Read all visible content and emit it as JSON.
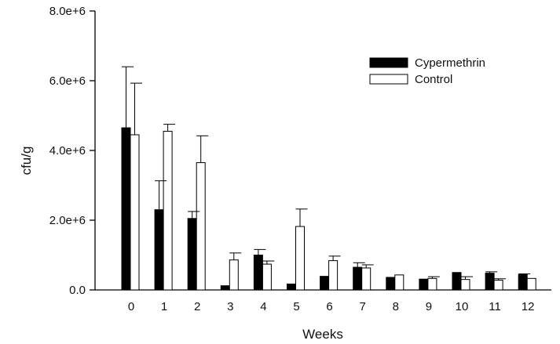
{
  "chart_data": {
    "type": "bar",
    "xlabel": "Weeks",
    "ylabel": "cfu/g",
    "ylim": [
      0,
      8000000
    ],
    "y_ticks": [
      {
        "value": 0,
        "label": "0.0"
      },
      {
        "value": 2000000,
        "label": "2.0e+6"
      },
      {
        "value": 4000000,
        "label": "4.0e+6"
      },
      {
        "value": 6000000,
        "label": "6.0e+6"
      },
      {
        "value": 8000000,
        "label": "8.0e+6"
      }
    ],
    "categories": [
      "0",
      "1",
      "2",
      "3",
      "4",
      "5",
      "6",
      "7",
      "8",
      "9",
      "10",
      "11",
      "12"
    ],
    "series": [
      {
        "name": "Cypermethrin",
        "fill": "#000000",
        "values": [
          4650000,
          2300000,
          2050000,
          120000,
          1000000,
          170000,
          390000,
          650000,
          360000,
          310000,
          500000,
          480000,
          440000
        ],
        "errors": [
          1750000,
          830000,
          200000,
          0,
          160000,
          0,
          0,
          130000,
          0,
          0,
          0,
          40000,
          20000
        ]
      },
      {
        "name": "Control",
        "fill": "#ffffff",
        "values": [
          4450000,
          4550000,
          3650000,
          860000,
          740000,
          1820000,
          840000,
          630000,
          430000,
          330000,
          300000,
          280000,
          330000
        ],
        "errors": [
          1480000,
          200000,
          770000,
          200000,
          90000,
          500000,
          130000,
          90000,
          0,
          50000,
          80000,
          40000,
          0
        ]
      }
    ],
    "legend": {
      "placement": "top-right"
    },
    "grid": false
  }
}
